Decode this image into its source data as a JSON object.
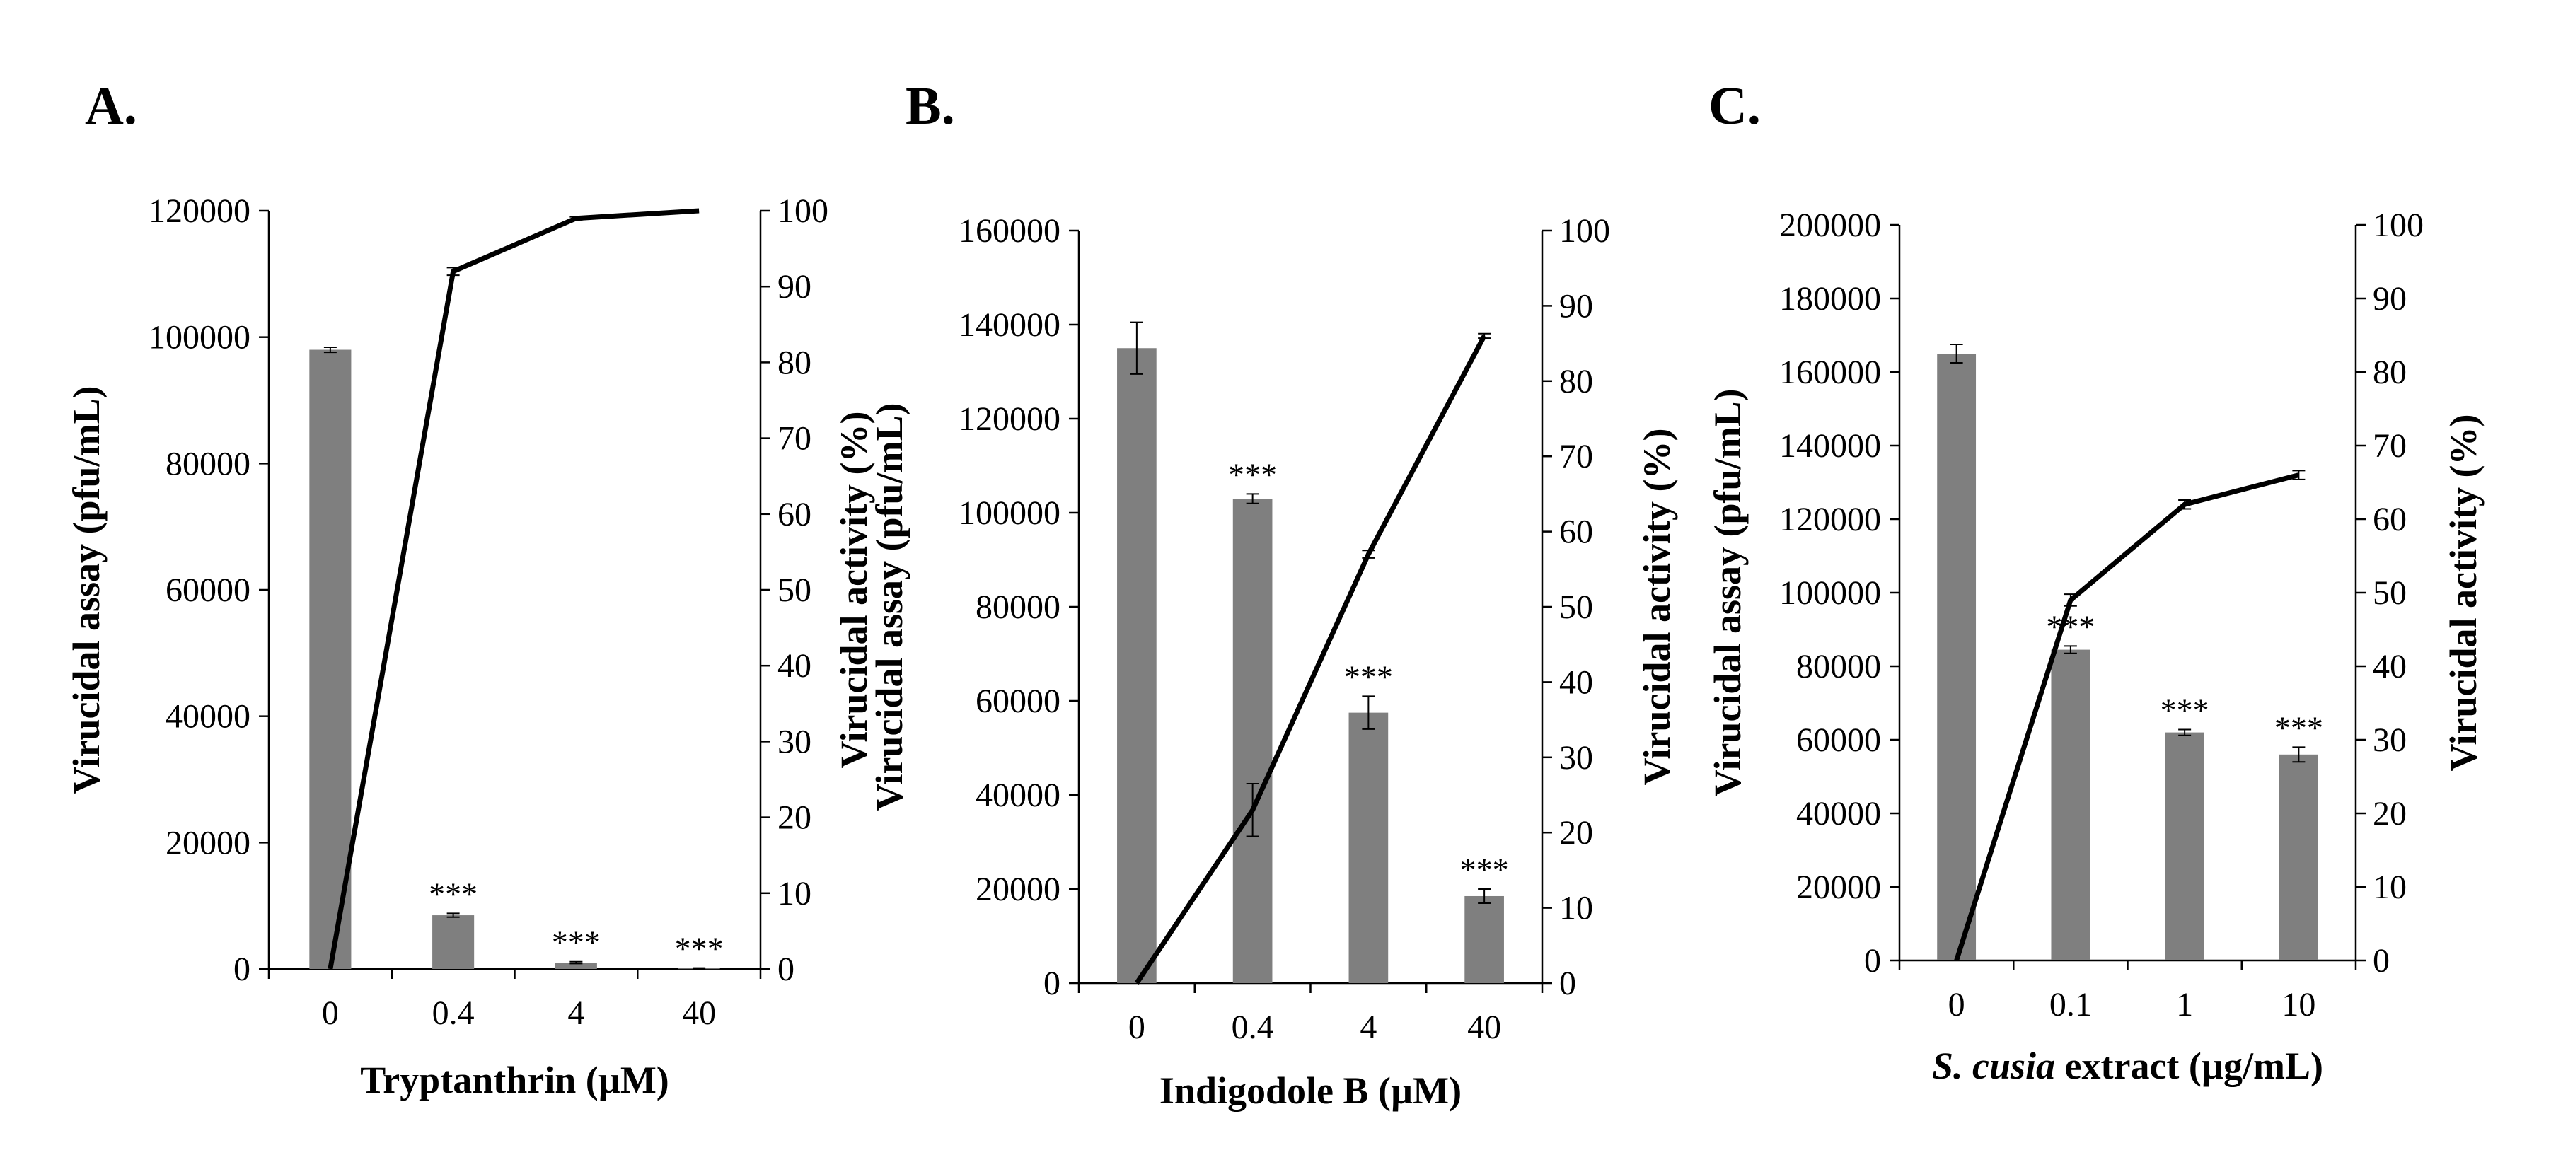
{
  "colors": {
    "bar": "#7f7f7f",
    "line": "#000000",
    "axis": "#000000"
  },
  "chart_data": [
    {
      "type": "bar+line",
      "panel_label": "A.",
      "categories": [
        "0",
        "0.4",
        "4",
        "40"
      ],
      "xlabel": "Tryptanthrin (µM)",
      "xlabel_parts": [
        {
          "text": "Tryptanthrin (µM)",
          "italic": false
        }
      ],
      "ylabel_left": "Virucidal assay (pfu/mL)",
      "ylabel_right": "Virucidal activity (%)",
      "ylim_left": [
        0,
        120000
      ],
      "yticks_left": [
        0,
        20000,
        40000,
        60000,
        80000,
        100000,
        120000
      ],
      "ylim_right": [
        0,
        100
      ],
      "yticks_right": [
        0,
        10,
        20,
        30,
        40,
        50,
        60,
        70,
        80,
        90,
        100
      ],
      "series": [
        {
          "name": "Virucidal assay (pfu/mL)",
          "kind": "bar",
          "axis": "left",
          "values": [
            98000,
            8500,
            1000,
            100
          ],
          "errors": [
            400,
            300,
            150,
            50
          ]
        },
        {
          "name": "Virucidal activity (%)",
          "kind": "line",
          "axis": "right",
          "values": [
            0,
            92,
            99,
            100
          ],
          "errors": [
            0,
            0.5,
            0.2,
            0
          ]
        }
      ],
      "annotations": [
        "",
        "***",
        "***",
        "***"
      ]
    },
    {
      "type": "bar+line",
      "panel_label": "B.",
      "categories": [
        "0",
        "0.4",
        "4",
        "40"
      ],
      "xlabel": "Indigodole B (µM)",
      "xlabel_parts": [
        {
          "text": "Indigodole B (µM)",
          "italic": false
        }
      ],
      "ylabel_left": "Virucidal assay (pfu/mL)",
      "ylabel_right": "Virucidal activity (%)",
      "ylim_left": [
        0,
        160000
      ],
      "yticks_left": [
        0,
        20000,
        40000,
        60000,
        80000,
        100000,
        120000,
        140000,
        160000
      ],
      "ylim_right": [
        0,
        100
      ],
      "yticks_right": [
        0,
        10,
        20,
        30,
        40,
        50,
        60,
        70,
        80,
        90,
        100
      ],
      "series": [
        {
          "name": "Virucidal assay (pfu/mL)",
          "kind": "bar",
          "axis": "left",
          "values": [
            135000,
            103000,
            57500,
            18500
          ],
          "errors": [
            5500,
            1000,
            3500,
            1500
          ]
        },
        {
          "name": "Virucidal activity (%)",
          "kind": "line",
          "axis": "right",
          "values": [
            0,
            23,
            57,
            86
          ],
          "errors": [
            0,
            3.5,
            0.5,
            0.3
          ]
        }
      ],
      "annotations": [
        "",
        "***",
        "***",
        "***"
      ]
    },
    {
      "type": "bar+line",
      "panel_label": "C.",
      "categories": [
        "0",
        "0.1",
        "1",
        "10"
      ],
      "xlabel": "S. cusia extract (µg/mL)",
      "xlabel_parts": [
        {
          "text": "S. cusia",
          "italic": true
        },
        {
          "text": " extract (µg/mL)",
          "italic": false
        }
      ],
      "ylabel_left": "Virucidal assay (pfu/mL)",
      "ylabel_right": "Virucidal activity (%)",
      "ylim_left": [
        0,
        200000
      ],
      "yticks_left": [
        0,
        20000,
        40000,
        60000,
        80000,
        100000,
        120000,
        140000,
        160000,
        180000,
        200000
      ],
      "ylim_right": [
        0,
        100
      ],
      "yticks_right": [
        0,
        10,
        20,
        30,
        40,
        50,
        60,
        70,
        80,
        90,
        100
      ],
      "series": [
        {
          "name": "Virucidal assay (pfu/mL)",
          "kind": "bar",
          "axis": "left",
          "values": [
            165000,
            84500,
            62000,
            56000
          ],
          "errors": [
            2500,
            1000,
            800,
            2000
          ]
        },
        {
          "name": "Virucidal activity (%)",
          "kind": "line",
          "axis": "right",
          "values": [
            0,
            49,
            62,
            66
          ],
          "errors": [
            0,
            0.8,
            0.6,
            0.6
          ]
        }
      ],
      "annotations": [
        "",
        "***",
        "***",
        "***"
      ]
    }
  ]
}
